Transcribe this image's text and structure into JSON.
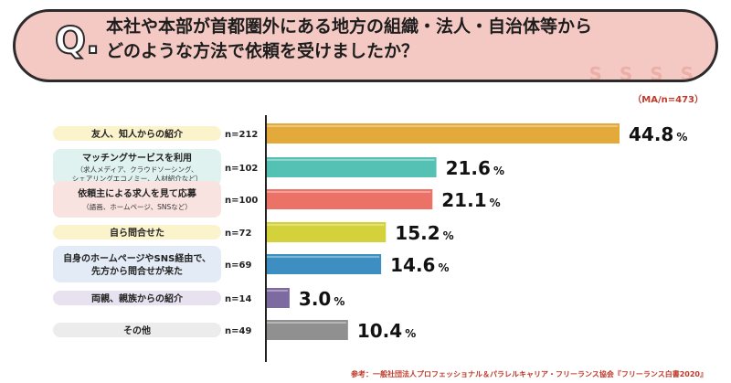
{
  "question": {
    "mark": "Q.",
    "line1": "本社や本部が首都圏外にある地方の組織・法人・自治体等から",
    "line2": "どのような方法で依頼を受けましたか？"
  },
  "banner_deco": "S S S S",
  "ma_note": "（MA/n=473）",
  "footer": "参考：一般社団法人プロフェッショナル＆パラレルキャリア・フリーランス協会『フリーランス白書2020』",
  "colors": {
    "label_bg": "#fbf3cc",
    "label_bg_alt": "#e2ebf6",
    "label_bg_purple": "#e8e1ef",
    "label_bg_pink": "#f9e3e1",
    "axis": "#222222"
  },
  "chart_data": {
    "type": "bar",
    "orientation": "horizontal",
    "unit": "%",
    "xlim": [
      0,
      50
    ],
    "categories": [
      {
        "title": "友人、知人からの紹介",
        "sub": "",
        "n": "n=212",
        "value": 44.8,
        "color": "#e3a93a",
        "label_bg": "#fbf3cc"
      },
      {
        "title": "マッチングサービスを利用",
        "sub": "（求人メディア、クラウドソーシング、シェアリングエコノミー、人材紹介など）",
        "sub1": "（求人メディア、クラウドソーシング、",
        "sub2": "シェアリングエコノミー、人材紹介など）",
        "n": "n=102",
        "value": 21.6,
        "color": "#55c1b4",
        "label_bg": "#e0f2ef"
      },
      {
        "title": "依頼主による求人を見て応募",
        "sub": "（語画、ホームページ、SNSなど）",
        "n": "n=100",
        "value": 21.1,
        "color": "#ec7166",
        "label_bg": "#f9e3e1"
      },
      {
        "title": "自ら問合せた",
        "sub": "",
        "n": "n=72",
        "value": 15.2,
        "color": "#d4d23a",
        "label_bg": "#fbf3cc"
      },
      {
        "title": "自身のホームページやSNS経由で、",
        "sub": "先方から問合せが来た",
        "n": "n=69",
        "value": 14.6,
        "color": "#3d8fc2",
        "label_bg": "#e2ebf6",
        "two_bold": true
      },
      {
        "title": "両親、親族からの紹介",
        "sub": "",
        "n": "n=14",
        "value": 3.0,
        "color": "#7d6aa1",
        "label_bg": "#e8e1ef"
      },
      {
        "title": "その他",
        "sub": "",
        "n": "n=49",
        "value": 10.4,
        "color": "#909090",
        "label_bg": "#ececec"
      }
    ]
  }
}
